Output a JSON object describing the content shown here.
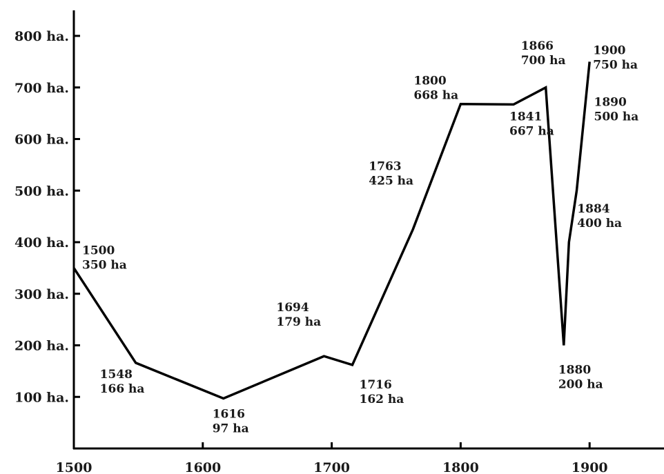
{
  "chart_data": {
    "type": "line",
    "title": "",
    "xlabel": "",
    "ylabel": "",
    "xlim": [
      1500,
      1950
    ],
    "ylim": [
      0,
      850
    ],
    "x_ticks": [
      1500,
      1600,
      1700,
      1800,
      1900
    ],
    "x_tick_labels": [
      "1500",
      "1600",
      "1700",
      "1800",
      "1900"
    ],
    "y_ticks": [
      100,
      200,
      300,
      400,
      500,
      600,
      700,
      800
    ],
    "y_tick_labels": [
      "100 ha.",
      "200 ha.",
      "300 ha.",
      "400 ha.",
      "500 ha.",
      "600 ha.",
      "700 ha.",
      "800 ha."
    ],
    "grid": false,
    "series": [
      {
        "color": "#000000",
        "points": [
          {
            "x": 1500,
            "y": 350,
            "year_label": "1500",
            "value_label": "350 ha"
          },
          {
            "x": 1548,
            "y": 166,
            "year_label": "1548",
            "value_label": "166 ha"
          },
          {
            "x": 1616,
            "y": 97,
            "year_label": "1616",
            "value_label": "97 ha"
          },
          {
            "x": 1694,
            "y": 179,
            "year_label": "1694",
            "value_label": "179 ha"
          },
          {
            "x": 1716,
            "y": 162,
            "year_label": "1716",
            "value_label": "162 ha"
          },
          {
            "x": 1763,
            "y": 425,
            "year_label": "1763",
            "value_label": "425 ha"
          },
          {
            "x": 1800,
            "y": 668,
            "year_label": "1800",
            "value_label": "668 ha"
          },
          {
            "x": 1841,
            "y": 667,
            "year_label": "1841",
            "value_label": "667 ha"
          },
          {
            "x": 1866,
            "y": 700,
            "year_label": "1866",
            "value_label": "700 ha"
          },
          {
            "x": 1880,
            "y": 200,
            "year_label": "1880",
            "value_label": "200 ha"
          },
          {
            "x": 1884,
            "y": 400,
            "year_label": "1884",
            "value_label": "400 ha"
          },
          {
            "x": 1890,
            "y": 500,
            "year_label": "1890",
            "value_label": "500 ha"
          },
          {
            "x": 1900,
            "y": 750,
            "year_label": "1900",
            "value_label": "750 ha"
          }
        ]
      }
    ]
  }
}
